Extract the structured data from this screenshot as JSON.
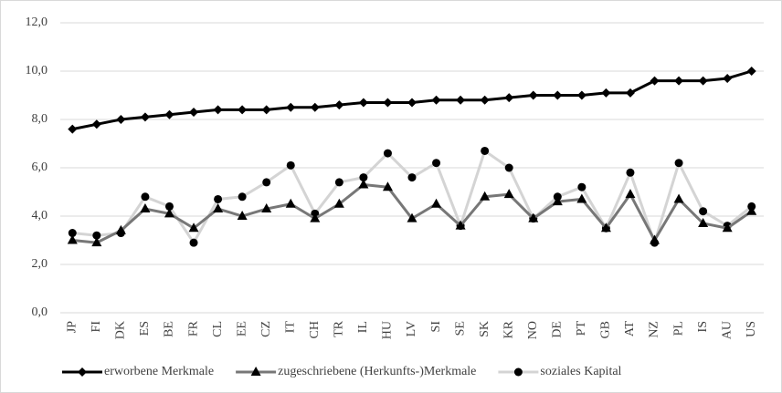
{
  "chart_data": {
    "type": "line",
    "categories": [
      "JP",
      "FI",
      "DK",
      "ES",
      "BE",
      "FR",
      "CL",
      "EE",
      "CZ",
      "IT",
      "CH",
      "TR",
      "IL",
      "HU",
      "LV",
      "SI",
      "SE",
      "SK",
      "KR",
      "NO",
      "DE",
      "PT",
      "GB",
      "AT",
      "NZ",
      "PL",
      "IS",
      "AU",
      "US"
    ],
    "series": [
      {
        "name": "erworbene Merkmale",
        "color": "#000000",
        "marker": "diamond",
        "values": [
          7.6,
          7.8,
          8.0,
          8.1,
          8.2,
          8.3,
          8.4,
          8.4,
          8.4,
          8.5,
          8.5,
          8.6,
          8.7,
          8.7,
          8.7,
          8.8,
          8.8,
          8.8,
          8.9,
          9.0,
          9.0,
          9.0,
          9.1,
          9.1,
          9.6,
          9.6,
          9.6,
          9.7,
          10.0
        ]
      },
      {
        "name": "zugeschriebene (Herkunfts-)Merkmale",
        "color": "#777777",
        "marker": "triangle",
        "values": [
          3.0,
          2.9,
          3.4,
          4.3,
          4.1,
          3.5,
          4.3,
          4.0,
          4.3,
          4.5,
          3.9,
          4.5,
          5.3,
          5.2,
          3.9,
          4.5,
          3.6,
          4.8,
          4.9,
          3.9,
          4.6,
          4.7,
          3.5,
          4.9,
          3.0,
          4.7,
          3.7,
          3.5,
          4.2
        ]
      },
      {
        "name": "soziales Kapital",
        "color": "#d4d4d4",
        "marker": "circle",
        "values": [
          3.3,
          3.2,
          3.3,
          4.8,
          4.4,
          2.9,
          4.7,
          4.8,
          5.4,
          6.1,
          4.1,
          5.4,
          5.6,
          6.6,
          5.6,
          6.2,
          3.6,
          6.7,
          6.0,
          3.9,
          4.8,
          5.2,
          3.5,
          5.8,
          2.9,
          6.2,
          4.2,
          3.6,
          4.4
        ]
      }
    ],
    "ylim": [
      0,
      12
    ],
    "yticks": [
      {
        "value": 0,
        "label": "0,0"
      },
      {
        "value": 2,
        "label": "2,0"
      },
      {
        "value": 4,
        "label": "4,0"
      },
      {
        "value": 6,
        "label": "6,0"
      },
      {
        "value": 8,
        "label": "8,0"
      },
      {
        "value": 10,
        "label": "10,0"
      },
      {
        "value": 12,
        "label": "12,0"
      }
    ],
    "grid": true,
    "legend": "bottom"
  }
}
